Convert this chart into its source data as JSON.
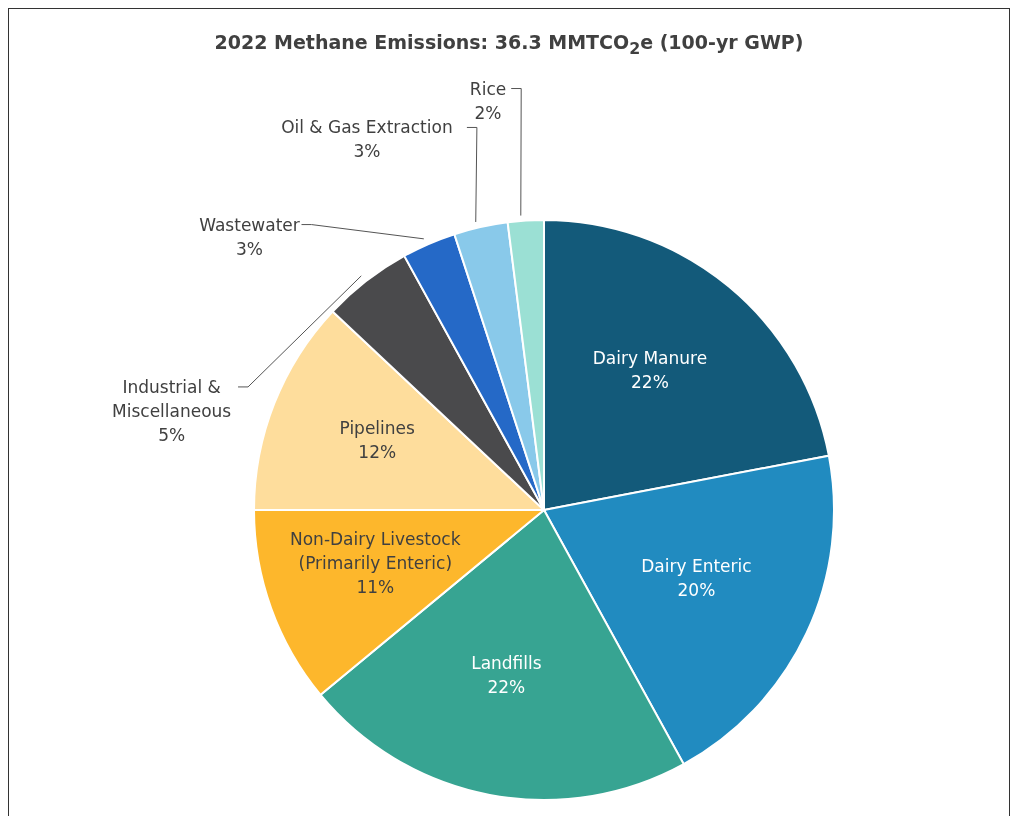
{
  "chart_data": {
    "type": "pie",
    "title": "2022 Methane Emissions: 36.3 MMTCO$_{2}$e (100-yr GWP)",
    "categories": [
      "Dairy Manure",
      "Dairy Enteric",
      "Landfills",
      "Non-Dairy Livestock\n(Primarily Enteric)",
      "Pipelines",
      "Industrial &\nMiscellaneous",
      "Wastewater",
      "Oil & Gas Extraction",
      "Rice"
    ],
    "values": [
      22,
      20,
      22,
      11,
      12,
      5,
      3,
      3,
      2
    ],
    "value_labels": [
      "22%",
      "20%",
      "22%",
      "11%",
      "12%",
      "5%",
      "3%",
      "3%",
      "2%"
    ],
    "colors": [
      "#135a7a",
      "#218bc0",
      "#37a492",
      "#fdb72c",
      "#fedd9c",
      "#4a4a4c",
      "#2569c7",
      "#89c9ea",
      "#9be0d4"
    ],
    "legend": false
  }
}
